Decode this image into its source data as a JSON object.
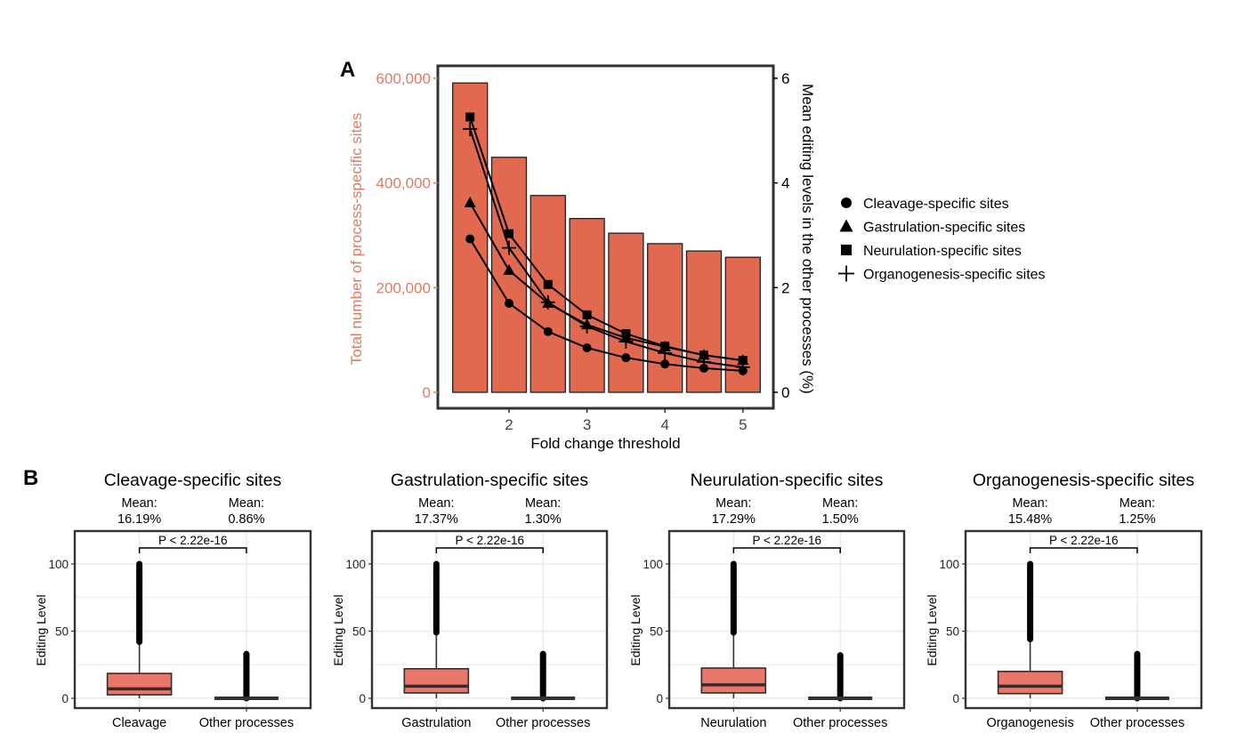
{
  "panels": {
    "a_label": "A",
    "b_label": "B"
  },
  "colors": {
    "bar": "#e0694f",
    "left_axis_text": "#e07a62",
    "box": "#e8766a",
    "frame": "#333333",
    "grid": "#ebebeb",
    "points": "#000000"
  },
  "chart_data": [
    {
      "type": "bar",
      "panel": "A",
      "title": "",
      "xlabel": "Fold change threshold",
      "ylabel": "Total number of process-specific sites",
      "y2label": "Mean editing levels in the other processes (%)",
      "x": [
        1.5,
        2,
        2.5,
        3,
        3.5,
        4,
        4.5,
        5
      ],
      "x_ticks": [
        "2",
        "3",
        "4",
        "5"
      ],
      "x_tick_values": [
        2,
        3,
        4,
        5
      ],
      "xlim": [
        1.1,
        5.4
      ],
      "bar_values": [
        591000,
        449000,
        376000,
        332000,
        304000,
        284000,
        270000,
        258000
      ],
      "ylim": [
        0,
        620000
      ],
      "y_ticks": [
        "0",
        "200,000",
        "400,000",
        "600,000"
      ],
      "y_tick_values": [
        0,
        200000,
        400000,
        600000
      ],
      "y2lim": [
        0,
        6.2
      ],
      "y2_ticks": [
        "0",
        "2",
        "4",
        "6"
      ],
      "y2_tick_values": [
        0,
        2,
        4,
        6
      ],
      "grid": false,
      "legend_position": "right",
      "series": [
        {
          "name": "Cleavage-specific sites",
          "marker": "circle",
          "values": [
            2.93,
            1.7,
            1.16,
            0.85,
            0.66,
            0.54,
            0.46,
            0.41
          ]
        },
        {
          "name": "Gastrulation-specific sites",
          "marker": "triangle",
          "values": [
            3.62,
            2.33,
            1.7,
            1.29,
            1.04,
            0.87,
            0.71,
            0.61
          ]
        },
        {
          "name": "Neurulation-specific sites",
          "marker": "square",
          "values": [
            5.26,
            3.03,
            2.06,
            1.48,
            1.12,
            0.88,
            0.71,
            0.61
          ]
        },
        {
          "name": "Organogenesis-specific sites",
          "marker": "plus",
          "values": [
            5.03,
            2.76,
            1.72,
            1.26,
            0.97,
            0.75,
            0.58,
            0.48
          ]
        }
      ]
    },
    {
      "type": "box",
      "panel": "B",
      "ylabel": "Editing Level",
      "ylim": [
        -7,
        125
      ],
      "y_ticks": [
        "0",
        "50",
        "100"
      ],
      "y_tick_values": [
        0,
        50,
        100
      ],
      "grid": true,
      "subplots": [
        {
          "title": "Cleavage-specific sites",
          "pvalue": "P < 2.22e-16",
          "groups": [
            {
              "label": "Cleavage",
              "mean_label": "Mean:",
              "mean_value": "16.19%",
              "q1": 2.6,
              "median": 7,
              "q3": 18.5,
              "whisker_low": 0,
              "whisker_high": 42,
              "outlier_range": [
                42,
                100
              ]
            },
            {
              "label": "Other processes",
              "mean_label": "Mean:",
              "mean_value": "0.86%",
              "q1": 0,
              "median": 0,
              "q3": 0,
              "whisker_low": 0,
              "whisker_high": 0,
              "outlier_range": [
                0,
                33
              ]
            }
          ]
        },
        {
          "title": "Gastrulation-specific sites",
          "pvalue": "P < 2.22e-16",
          "groups": [
            {
              "label": "Gastrulation",
              "mean_label": "Mean:",
              "mean_value": "17.37%",
              "q1": 4,
              "median": 9,
              "q3": 22,
              "whisker_low": 0,
              "whisker_high": 49,
              "outlier_range": [
                49,
                100
              ]
            },
            {
              "label": "Other processes",
              "mean_label": "Mean:",
              "mean_value": "1.30%",
              "q1": 0,
              "median": 0,
              "q3": 0,
              "whisker_low": 0,
              "whisker_high": 0,
              "outlier_range": [
                0,
                33
              ]
            }
          ]
        },
        {
          "title": "Neurulation-specific sites",
          "pvalue": "P < 2.22e-16",
          "groups": [
            {
              "label": "Neurulation",
              "mean_label": "Mean:",
              "mean_value": "17.29%",
              "q1": 4,
              "median": 10,
              "q3": 22.5,
              "whisker_low": 0,
              "whisker_high": 49,
              "outlier_range": [
                49,
                100
              ]
            },
            {
              "label": "Other processes",
              "mean_label": "Mean:",
              "mean_value": "1.50%",
              "q1": 0,
              "median": 0,
              "q3": 0,
              "whisker_low": 0,
              "whisker_high": 0,
              "outlier_range": [
                0,
                32
              ]
            }
          ]
        },
        {
          "title": "Organogenesis-specific sites",
          "pvalue": "P < 2.22e-16",
          "groups": [
            {
              "label": "Organogenesis",
              "mean_label": "Mean:",
              "mean_value": "15.48%",
              "q1": 3.5,
              "median": 9,
              "q3": 20,
              "whisker_low": 0,
              "whisker_high": 44,
              "outlier_range": [
                44,
                100
              ]
            },
            {
              "label": "Other processes",
              "mean_label": "Mean:",
              "mean_value": "1.25%",
              "q1": 0,
              "median": 0,
              "q3": 0,
              "whisker_low": 0,
              "whisker_high": 0,
              "outlier_range": [
                0,
                33
              ]
            }
          ]
        }
      ]
    }
  ]
}
